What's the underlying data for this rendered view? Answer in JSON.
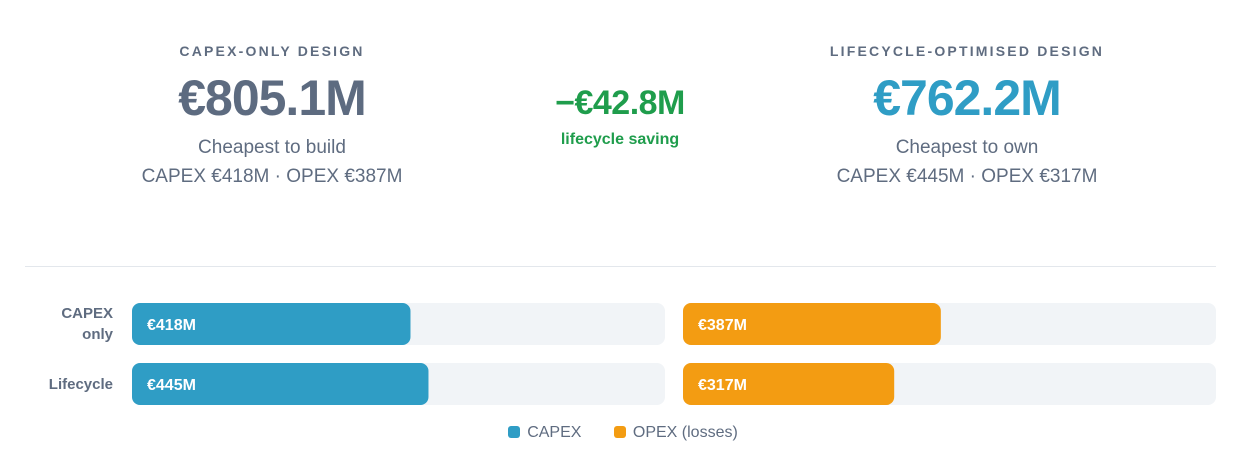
{
  "summary": {
    "left": {
      "eyebrow": "CAPEX-ONLY DESIGN",
      "total": "€805.1M",
      "tagline": "Cheapest to build",
      "breakdown": "CAPEX €418M · OPEX €387M"
    },
    "middle": {
      "delta": "−€42.8M",
      "label": "lifecycle saving"
    },
    "right": {
      "eyebrow": "LIFECYCLE-OPTIMISED DESIGN",
      "total": "€762.2M",
      "tagline": "Cheapest to own",
      "breakdown": "CAPEX €445M · OPEX €317M"
    }
  },
  "chart_data": {
    "type": "bar",
    "orientation": "horizontal",
    "categories": [
      "CAPEX only",
      "Lifecycle"
    ],
    "series": [
      {
        "name": "CAPEX",
        "values": [
          418,
          445
        ],
        "labels": [
          "€418M",
          "€445M"
        ],
        "color": "#2f9dc5"
      },
      {
        "name": "OPEX (losses)",
        "values": [
          387,
          317
        ],
        "labels": [
          "€387M",
          "€317M"
        ],
        "color": "#f39c12"
      }
    ],
    "xlim": [
      0,
      800
    ],
    "legend": "bottom-center"
  },
  "colors": {
    "track": "#f1f4f7",
    "label": "#5f6c80",
    "bar_text": "#ffffff"
  }
}
